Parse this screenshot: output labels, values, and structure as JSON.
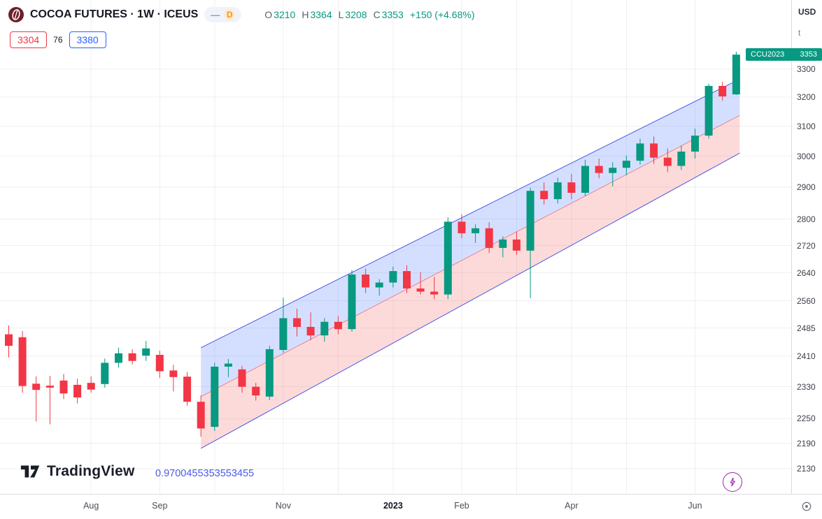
{
  "header": {
    "title": "COCOA FUTURES · 1W · ICEUS",
    "toolbar_dash": "—",
    "delayed_badge": "D",
    "ohlc": {
      "open_label": "O",
      "open": "3210",
      "high_label": "H",
      "high": "3364",
      "low_label": "L",
      "low": "3208",
      "close_label": "C",
      "close": "3353",
      "change": "+150 (+4.68%)"
    },
    "trade_panel": {
      "sell": "3304",
      "spread": "76",
      "buy": "3380"
    }
  },
  "price_axis": {
    "currency": "USD",
    "unit": "t",
    "last_price_tag": {
      "contract": "CCU2023",
      "price": "3353"
    }
  },
  "footer": {
    "brand": "TradingView",
    "pearson_r": "0.9700455353553455"
  },
  "chart_data": {
    "type": "candlestick",
    "symbol": "COCOA FUTURES",
    "exchange": "ICEUS",
    "interval": "1W",
    "scale": "log",
    "ylim": [
      2100,
      3400
    ],
    "y_ticks": [
      3300,
      3200,
      3100,
      3000,
      2900,
      2800,
      2720,
      2640,
      2560,
      2485,
      2410,
      2330,
      2250,
      2190,
      2130
    ],
    "x_labels": [
      {
        "label": "Aug",
        "week": 6
      },
      {
        "label": "Sep",
        "week": 11
      },
      {
        "label": "Nov",
        "week": 20
      },
      {
        "label": "2023",
        "week": 28,
        "emphasis": true
      },
      {
        "label": "Feb",
        "week": 33
      },
      {
        "label": "Apr",
        "week": 41
      },
      {
        "label": "Jun",
        "week": 50
      }
    ],
    "candles_ohlc": [
      [
        2468,
        2492,
        2406,
        2437
      ],
      [
        2460,
        2477,
        2315,
        2332
      ],
      [
        2338,
        2357,
        2243,
        2322
      ],
      [
        2333,
        2358,
        2236,
        2328
      ],
      [
        2346,
        2363,
        2299,
        2313
      ],
      [
        2335,
        2351,
        2288,
        2303
      ],
      [
        2340,
        2357,
        2315,
        2323
      ],
      [
        2337,
        2403,
        2328,
        2392
      ],
      [
        2392,
        2432,
        2380,
        2417
      ],
      [
        2417,
        2428,
        2388,
        2397
      ],
      [
        2411,
        2450,
        2397,
        2430
      ],
      [
        2413,
        2424,
        2353,
        2370
      ],
      [
        2372,
        2387,
        2318,
        2355
      ],
      [
        2356,
        2368,
        2282,
        2292
      ],
      [
        2292,
        2308,
        2206,
        2226
      ],
      [
        2230,
        2392,
        2220,
        2382
      ],
      [
        2382,
        2402,
        2355,
        2390
      ],
      [
        2375,
        2384,
        2315,
        2330
      ],
      [
        2330,
        2340,
        2295,
        2308
      ],
      [
        2305,
        2437,
        2296,
        2428
      ],
      [
        2426,
        2569,
        2419,
        2512
      ],
      [
        2512,
        2538,
        2462,
        2488
      ],
      [
        2488,
        2528,
        2452,
        2465
      ],
      [
        2465,
        2512,
        2448,
        2502
      ],
      [
        2502,
        2518,
        2468,
        2482
      ],
      [
        2482,
        2648,
        2475,
        2635
      ],
      [
        2635,
        2652,
        2582,
        2598
      ],
      [
        2598,
        2622,
        2575,
        2612
      ],
      [
        2612,
        2658,
        2598,
        2645
      ],
      [
        2645,
        2662,
        2582,
        2595
      ],
      [
        2595,
        2642,
        2578,
        2586
      ],
      [
        2586,
        2628,
        2565,
        2578
      ],
      [
        2578,
        2805,
        2565,
        2792
      ],
      [
        2792,
        2815,
        2742,
        2757
      ],
      [
        2757,
        2784,
        2728,
        2772
      ],
      [
        2772,
        2790,
        2698,
        2713
      ],
      [
        2713,
        2748,
        2685,
        2738
      ],
      [
        2738,
        2762,
        2692,
        2705
      ],
      [
        2705,
        2898,
        2568,
        2888
      ],
      [
        2888,
        2915,
        2845,
        2862
      ],
      [
        2862,
        2930,
        2848,
        2915
      ],
      [
        2915,
        2942,
        2862,
        2882
      ],
      [
        2882,
        2988,
        2872,
        2968
      ],
      [
        2968,
        2992,
        2928,
        2945
      ],
      [
        2945,
        2980,
        2902,
        2962
      ],
      [
        2962,
        3002,
        2938,
        2985
      ],
      [
        2985,
        3058,
        2972,
        3042
      ],
      [
        3042,
        3065,
        2975,
        2995
      ],
      [
        2995,
        3025,
        2948,
        2968
      ],
      [
        2968,
        3035,
        2955,
        3015
      ],
      [
        3015,
        3092,
        2992,
        3068
      ],
      [
        3068,
        3248,
        3058,
        3240
      ],
      [
        3240,
        3255,
        3188,
        3203
      ],
      [
        3210,
        3364,
        3208,
        3353
      ]
    ],
    "regression_channel": {
      "start_week": 14,
      "end_week": 53,
      "median_start": 2305,
      "median_end": 3137,
      "half_width": 127,
      "pearson_r": "0.9700455353553455"
    },
    "last_price": 3353
  },
  "colors": {
    "up": "#089981",
    "down": "#f23645",
    "accent_buy": "#2962ff",
    "accent_sell": "#f23645",
    "channel_line": "#4a5ae8",
    "channel_median_line": "rgba(242,54,69,0.55)",
    "channel_fill_upper": "rgba(82,128,255,0.25)",
    "channel_fill_lower": "rgba(247,108,108,0.25)",
    "grid": "rgba(42,46,57,0.08)",
    "last_price_bg": "#089981",
    "lightning": "#9c27b0",
    "pearson": "#4a5ae8"
  }
}
